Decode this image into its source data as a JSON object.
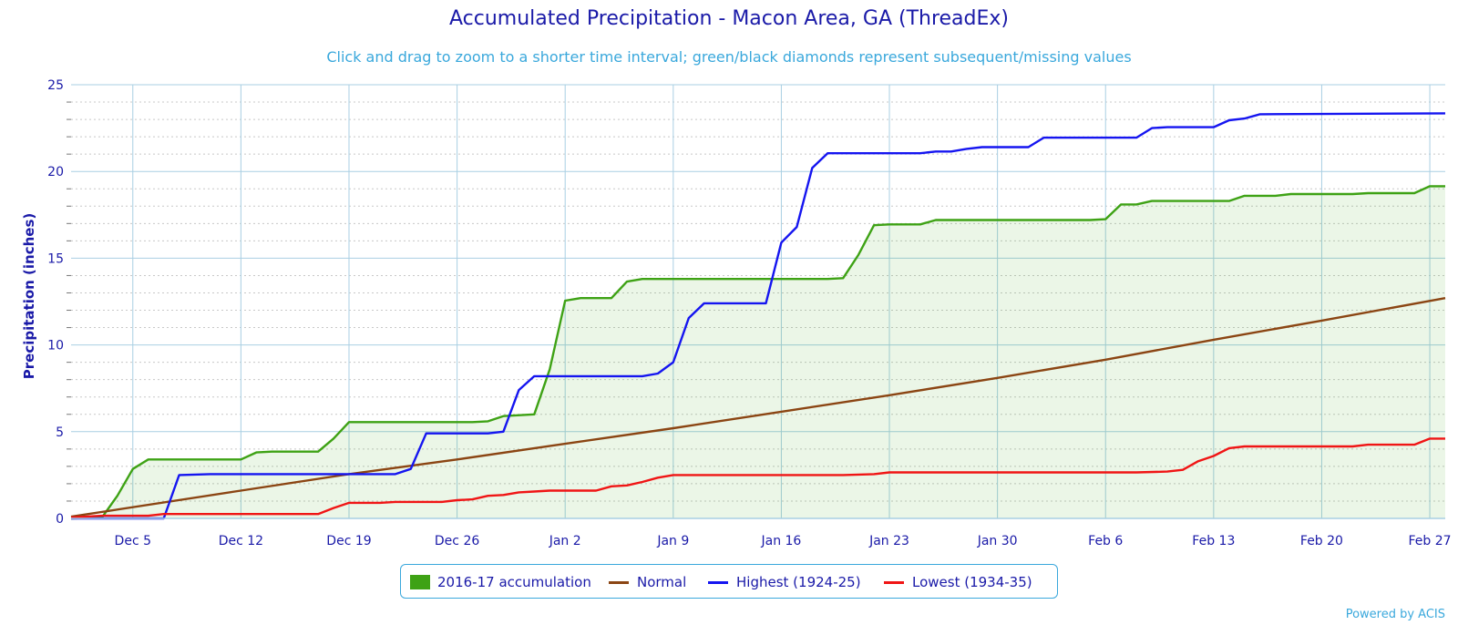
{
  "chart_data": {
    "type": "area",
    "title": "Accumulated Precipitation - Macon Area, GA (ThreadEx)",
    "subtitle": "Click and drag to zoom to a shorter time interval; green/black diamonds represent subsequent/missing values",
    "ylabel": "Precipitation (inches)",
    "ylim": [
      0,
      25
    ],
    "yticks": [
      0,
      5,
      10,
      15,
      20,
      25
    ],
    "x_range": [
      "Dec 1",
      "Feb 28"
    ],
    "xtick_labels": [
      "Dec 5",
      "Dec 12",
      "Dec 19",
      "Dec 26",
      "Jan 2",
      "Jan 9",
      "Jan 16",
      "Jan 23",
      "Jan 30",
      "Feb 6",
      "Feb 13",
      "Feb 20",
      "Feb 27"
    ],
    "grid": true,
    "legend_position": "bottom",
    "series": [
      {
        "name": "2016-17 accumulation",
        "kind": "area",
        "color": "#3ea215",
        "points": [
          [
            "Dec 1",
            0.0
          ],
          [
            "Dec 3",
            0.05
          ],
          [
            "Dec 4",
            1.3
          ],
          [
            "Dec 5",
            2.85
          ],
          [
            "Dec 6",
            3.4
          ],
          [
            "Dec 12",
            3.4
          ],
          [
            "Dec 13",
            3.8
          ],
          [
            "Dec 14",
            3.85
          ],
          [
            "Dec 17",
            3.85
          ],
          [
            "Dec 18",
            4.6
          ],
          [
            "Dec 19",
            5.55
          ],
          [
            "Dec 27",
            5.55
          ],
          [
            "Dec 28",
            5.6
          ],
          [
            "Dec 29",
            5.9
          ],
          [
            "Dec 31",
            6.0
          ],
          [
            "Jan 1",
            8.6
          ],
          [
            "Jan 2",
            12.55
          ],
          [
            "Jan 3",
            12.7
          ],
          [
            "Jan 5",
            12.7
          ],
          [
            "Jan 6",
            13.65
          ],
          [
            "Jan 7",
            13.8
          ],
          [
            "Jan 19",
            13.8
          ],
          [
            "Jan 20",
            13.85
          ],
          [
            "Jan 21",
            15.2
          ],
          [
            "Jan 22",
            16.9
          ],
          [
            "Jan 23",
            16.95
          ],
          [
            "Jan 25",
            16.95
          ],
          [
            "Jan 26",
            17.2
          ],
          [
            "Feb 5",
            17.2
          ],
          [
            "Feb 6",
            17.25
          ],
          [
            "Feb 7",
            18.1
          ],
          [
            "Feb 8",
            18.1
          ],
          [
            "Feb 9",
            18.3
          ],
          [
            "Feb 14",
            18.3
          ],
          [
            "Feb 15",
            18.6
          ],
          [
            "Feb 17",
            18.6
          ],
          [
            "Feb 18",
            18.7
          ],
          [
            "Feb 22",
            18.7
          ],
          [
            "Feb 23",
            18.75
          ],
          [
            "Feb 26",
            18.75
          ],
          [
            "Feb 27",
            19.15
          ],
          [
            "Feb 28",
            19.15
          ]
        ]
      },
      {
        "name": "Normal",
        "kind": "line",
        "color": "#8b4513",
        "points": [
          [
            "Dec 1",
            0.1
          ],
          [
            "Dec 12",
            1.6
          ],
          [
            "Dec 19",
            2.55
          ],
          [
            "Dec 26",
            3.4
          ],
          [
            "Jan 2",
            4.3
          ],
          [
            "Jan 9",
            5.2
          ],
          [
            "Jan 16",
            6.15
          ],
          [
            "Jan 23",
            7.1
          ],
          [
            "Jan 30",
            8.1
          ],
          [
            "Feb 6",
            9.15
          ],
          [
            "Feb 13",
            10.3
          ],
          [
            "Feb 20",
            11.4
          ],
          [
            "Feb 28",
            12.7
          ]
        ]
      },
      {
        "name": "Highest (1924-25)",
        "kind": "line",
        "color": "#1515f0",
        "points": [
          [
            "Dec 1",
            0.0
          ],
          [
            "Dec 7",
            0.0
          ],
          [
            "Dec 8",
            2.5
          ],
          [
            "Dec 10",
            2.55
          ],
          [
            "Dec 22",
            2.55
          ],
          [
            "Dec 23",
            2.85
          ],
          [
            "Dec 24",
            4.9
          ],
          [
            "Dec 28",
            4.9
          ],
          [
            "Dec 29",
            5.0
          ],
          [
            "Dec 30",
            7.4
          ],
          [
            "Dec 31",
            8.2
          ],
          [
            "Jan 7",
            8.2
          ],
          [
            "Jan 8",
            8.35
          ],
          [
            "Jan 9",
            9.0
          ],
          [
            "Jan 10",
            11.55
          ],
          [
            "Jan 11",
            12.4
          ],
          [
            "Jan 15",
            12.4
          ],
          [
            "Jan 16",
            15.9
          ],
          [
            "Jan 17",
            16.8
          ],
          [
            "Jan 18",
            20.2
          ],
          [
            "Jan 19",
            21.05
          ],
          [
            "Jan 25",
            21.05
          ],
          [
            "Jan 26",
            21.15
          ],
          [
            "Jan 27",
            21.15
          ],
          [
            "Jan 28",
            21.3
          ],
          [
            "Jan 29",
            21.4
          ],
          [
            "Feb 1",
            21.4
          ],
          [
            "Feb 2",
            21.95
          ],
          [
            "Feb 8",
            21.95
          ],
          [
            "Feb 9",
            22.5
          ],
          [
            "Feb 10",
            22.55
          ],
          [
            "Feb 13",
            22.55
          ],
          [
            "Feb 14",
            22.95
          ],
          [
            "Feb 15",
            23.05
          ],
          [
            "Feb 16",
            23.3
          ],
          [
            "Feb 28",
            23.35
          ]
        ]
      },
      {
        "name": "Lowest (1934-35)",
        "kind": "line",
        "color": "#f01515",
        "points": [
          [
            "Dec 1",
            0.05
          ],
          [
            "Dec 3",
            0.15
          ],
          [
            "Dec 6",
            0.15
          ],
          [
            "Dec 7",
            0.25
          ],
          [
            "Dec 17",
            0.25
          ],
          [
            "Dec 18",
            0.6
          ],
          [
            "Dec 19",
            0.9
          ],
          [
            "Dec 21",
            0.9
          ],
          [
            "Dec 22",
            0.95
          ],
          [
            "Dec 25",
            0.95
          ],
          [
            "Dec 26",
            1.05
          ],
          [
            "Dec 27",
            1.1
          ],
          [
            "Dec 28",
            1.3
          ],
          [
            "Dec 29",
            1.35
          ],
          [
            "Dec 30",
            1.5
          ],
          [
            "Dec 31",
            1.55
          ],
          [
            "Jan 1",
            1.6
          ],
          [
            "Jan 4",
            1.6
          ],
          [
            "Jan 5",
            1.85
          ],
          [
            "Jan 6",
            1.9
          ],
          [
            "Jan 7",
            2.1
          ],
          [
            "Jan 8",
            2.35
          ],
          [
            "Jan 9",
            2.5
          ],
          [
            "Jan 20",
            2.5
          ],
          [
            "Jan 22",
            2.55
          ],
          [
            "Jan 23",
            2.65
          ],
          [
            "Feb 8",
            2.65
          ],
          [
            "Feb 10",
            2.7
          ],
          [
            "Feb 11",
            2.8
          ],
          [
            "Feb 12",
            3.3
          ],
          [
            "Feb 13",
            3.6
          ],
          [
            "Feb 14",
            4.05
          ],
          [
            "Feb 15",
            4.15
          ],
          [
            "Feb 22",
            4.15
          ],
          [
            "Feb 23",
            4.25
          ],
          [
            "Feb 26",
            4.25
          ],
          [
            "Feb 27",
            4.6
          ],
          [
            "Feb 28",
            4.6
          ]
        ]
      }
    ]
  },
  "legend": {
    "items": [
      {
        "label": "2016-17 accumulation",
        "color": "#3ea215",
        "icon": "square-swatch"
      },
      {
        "label": "Normal",
        "color": "#8b4513",
        "icon": "line-swatch"
      },
      {
        "label": "Highest (1924-25)",
        "color": "#1515f0",
        "icon": "line-swatch"
      },
      {
        "label": "Lowest (1934-35)",
        "color": "#f01515",
        "icon": "line-swatch"
      }
    ]
  },
  "credit": "Powered by ACIS"
}
